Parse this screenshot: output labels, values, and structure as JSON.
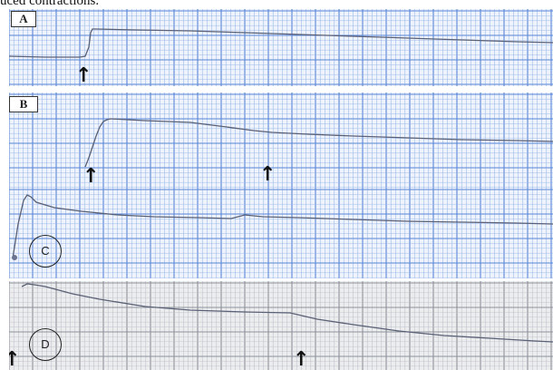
{
  "caption": "uced contractions.",
  "panels": [
    {
      "id": "A",
      "label": "A",
      "label_style": "box",
      "arrows": 1
    },
    {
      "id": "B",
      "label": "B",
      "label_style": "box",
      "arrows": 2
    },
    {
      "id": "C",
      "label": "C",
      "label_style": "circle",
      "arrows": 0
    },
    {
      "id": "D",
      "label": "D",
      "label_style": "circle",
      "arrows": 2
    }
  ],
  "colors": {
    "grid_blue": "#8fb0e6",
    "grid_blue_major": "#5a86d6",
    "grid_gray": "#b9bcc4",
    "paper_blue": "#eef3fc",
    "paper_gray": "#ecedef",
    "trace": "#5a6075"
  },
  "icons": {
    "arrow": "up-arrow-icon"
  },
  "arrow_glyph": "↑"
}
